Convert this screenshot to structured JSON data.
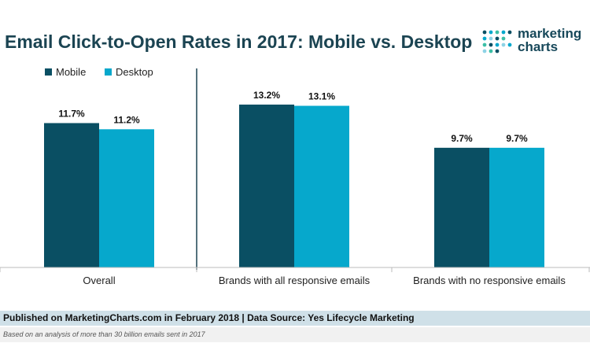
{
  "title": "Email Click-to-Open Rates in 2017: Mobile vs. Desktop",
  "logo": {
    "line1": "marketing",
    "line2": "charts"
  },
  "footer": {
    "source": "Published on MarketingCharts.com in February 2018 | Data Source: Yes Lifecycle Marketing",
    "note": "Based on an analysis of more than 30 billion emails sent in 2017"
  },
  "chart_data": {
    "type": "bar",
    "categories": [
      "Overall",
      "Brands with all responsive emails",
      "Brands with no responsive emails"
    ],
    "series": [
      {
        "name": "Mobile",
        "values": [
          11.7,
          13.2,
          9.7
        ],
        "labels": [
          "11.7%",
          "13.2%",
          "9.7%"
        ],
        "color": "#0a4f63"
      },
      {
        "name": "Desktop",
        "values": [
          11.2,
          13.1,
          9.7
        ],
        "labels": [
          "11.2%",
          "13.1%",
          "9.7%"
        ],
        "color": "#06a8cc"
      }
    ],
    "ylim": [
      0,
      15.3
    ],
    "legend_position": "top-left",
    "grid": false
  }
}
